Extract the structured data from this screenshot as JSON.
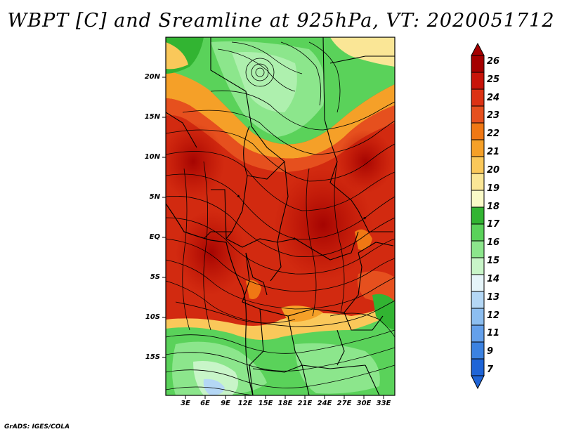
{
  "title": "WBPT [C] and Sreamline at 925hPa, VT: 2020051712",
  "footer": "GrADS: IGES/COLA",
  "map": {
    "lat_labels": [
      "20N",
      "15N",
      "10N",
      "5N",
      "EQ",
      "5S",
      "10S",
      "15S"
    ],
    "lon_labels": [
      "3E",
      "6E",
      "9E",
      "12E",
      "15E",
      "18E",
      "21E",
      "24E",
      "27E",
      "30E",
      "33E"
    ]
  },
  "colorbar": {
    "labels": [
      "26",
      "25",
      "24",
      "23",
      "22",
      "21",
      "20",
      "19",
      "18",
      "17",
      "16",
      "15",
      "14",
      "13",
      "12",
      "11",
      "9",
      "7"
    ],
    "colors": [
      "#a50000",
      "#c8140a",
      "#dc3214",
      "#e6501e",
      "#f07814",
      "#f5a028",
      "#fac85a",
      "#fae696",
      "#fafac8",
      "#32b432",
      "#5ad25a",
      "#8ce68c",
      "#c8f5c8",
      "#e6f5fa",
      "#b4d7f5",
      "#8cbef0",
      "#64a0eb",
      "#3c82e1",
      "#1e64d7"
    ]
  }
}
